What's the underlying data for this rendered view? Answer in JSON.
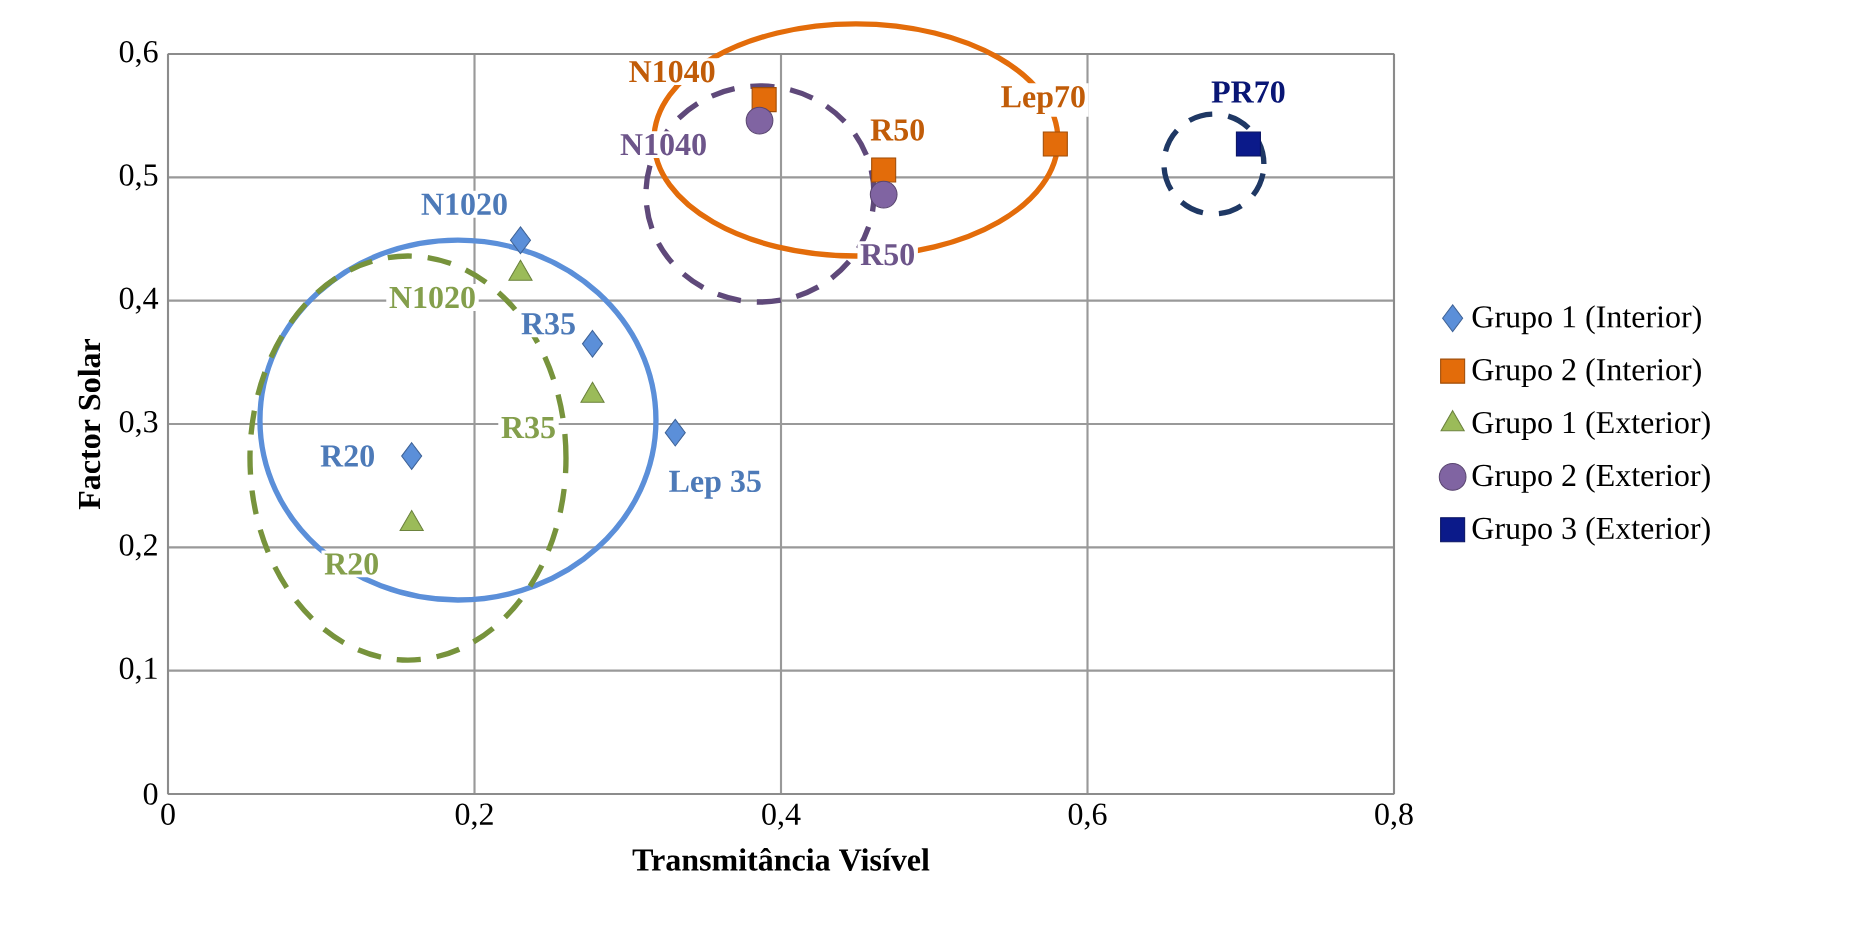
{
  "chart_data": {
    "type": "scatter",
    "xlabel": "Transmitância Visível",
    "ylabel": "Factor Solar",
    "xlim": [
      0,
      0.8
    ],
    "xticks": [
      0,
      {
        "value": 0.2,
        "label": "0,2"
      },
      {
        "value": 0.4,
        "label": "0,4"
      },
      {
        "value": 0.6,
        "label": "0,6"
      },
      {
        "value": 0.8,
        "label": "0,8"
      }
    ],
    "ylim": [
      0,
      0.6
    ],
    "yticks": [
      0,
      {
        "value": 0.1,
        "label": "0,1"
      },
      {
        "value": 0.2,
        "label": "0,2"
      },
      {
        "value": 0.3,
        "label": "0,3"
      },
      {
        "value": 0.4,
        "label": "0,4"
      },
      {
        "value": 0.5,
        "label": "0,5"
      },
      {
        "value": 0.6,
        "label": "0,6"
      }
    ],
    "grid": true,
    "legend": "right",
    "series": [
      {
        "name": "Grupo 1 (Interior)",
        "color": "#5b8fd9",
        "marker": "diamond",
        "x": [
          0.159,
          0.23,
          0.277,
          0.331
        ],
        "values": [
          0.274,
          0.449,
          0.365,
          0.293
        ],
        "value_labels": [
          "R20",
          "N1020",
          "R35",
          "Lep 35"
        ]
      },
      {
        "name": "Grupo 2 (Interior)",
        "color": "#e36c0a",
        "marker": "square",
        "x": [
          0.389,
          0.467,
          0.579
        ],
        "values": [
          0.563,
          0.506,
          0.527
        ],
        "value_labels": [
          "N1040",
          "R50",
          "Lep70"
        ]
      },
      {
        "name": "Grupo 1 (Exterior)",
        "color": "#9bbb59",
        "marker": "triangle",
        "x": [
          0.159,
          0.23,
          0.277
        ],
        "values": [
          0.219,
          0.422,
          0.323
        ],
        "value_labels": [
          "R20",
          "N1020",
          "R35"
        ]
      },
      {
        "name": "Grupo 2 (Exterior)",
        "color": "#8064a2",
        "marker": "circle",
        "x": [
          0.386,
          0.467
        ],
        "values": [
          0.546,
          0.486
        ],
        "value_labels": [
          "N1040",
          "R50"
        ]
      },
      {
        "name": "Grupo 3 (Exterior)",
        "color": "#0b1a8a",
        "marker": "square",
        "x": [
          0.705
        ],
        "values": [
          0.527
        ],
        "value_labels": [
          "PR70"
        ]
      }
    ]
  }
}
